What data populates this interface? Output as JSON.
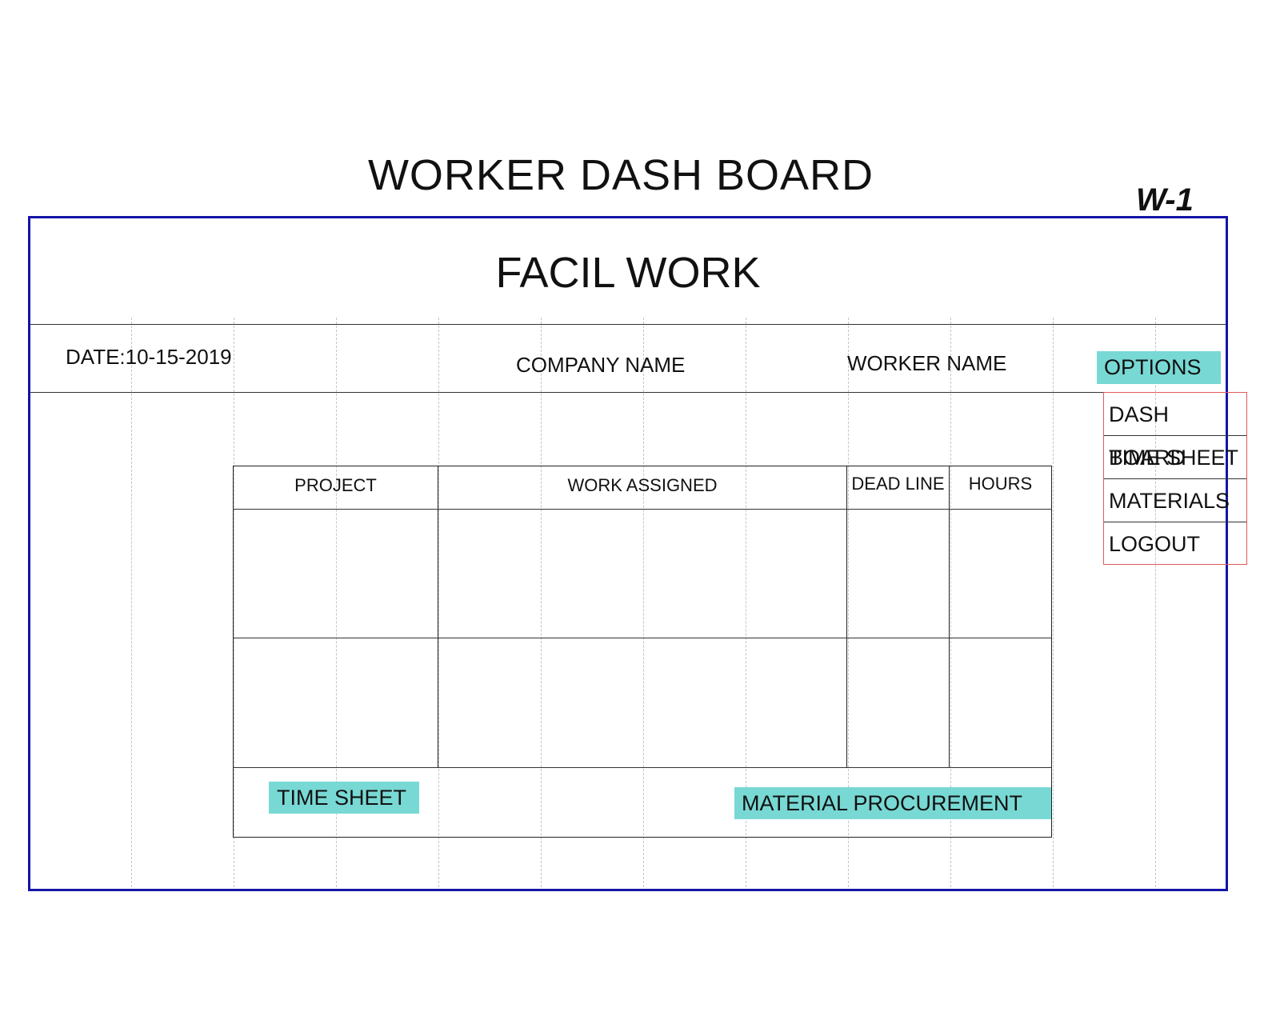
{
  "document": {
    "title": "WORKER DASH BOARD",
    "sheet_id": "W-1"
  },
  "app": {
    "name": "FACIL WORK"
  },
  "header": {
    "date": "DATE:10-15-2019",
    "company_name": "COMPANY NAME",
    "worker_name": "WORKER NAME",
    "options_label": "OPTIONS"
  },
  "menu": {
    "items": [
      "DASH BOARD",
      "TIME SHEET",
      "MATERIALS",
      "LOGOUT"
    ]
  },
  "table": {
    "columns": [
      "PROJECT",
      "WORK ASSIGNED",
      "DEAD LINE",
      "HOURS"
    ],
    "rows": [
      [
        "",
        "",
        "",
        ""
      ],
      [
        "",
        "",
        "",
        ""
      ]
    ]
  },
  "actions": {
    "time_sheet": "TIME SHEET",
    "material_procurement": "MATERIAL PROCUREMENT"
  },
  "colors": {
    "frame": "#1414a8",
    "button_fill": "#78d8d4",
    "menu_border": "#e05a5a",
    "gridline": "#c4c4c4"
  }
}
